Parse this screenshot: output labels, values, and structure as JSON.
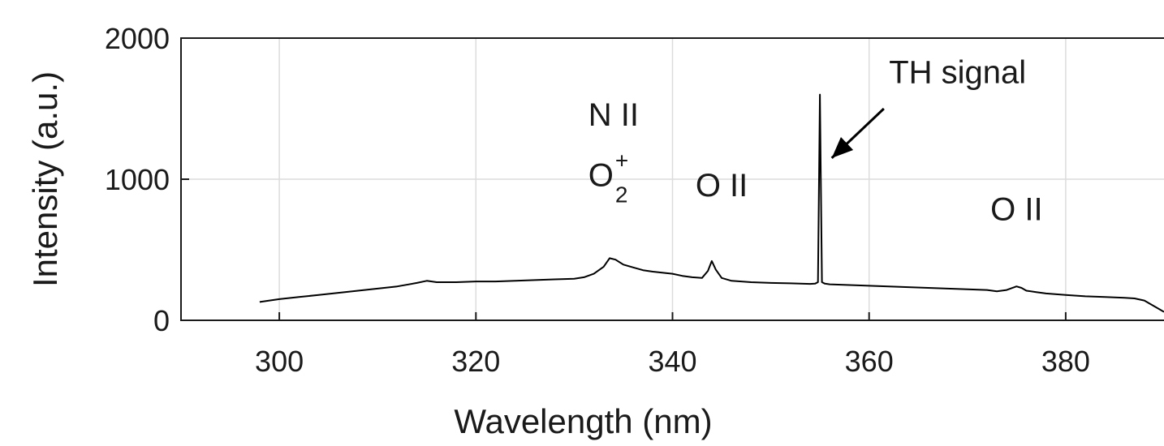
{
  "chart_data": {
    "type": "line",
    "xlabel": "Wavelength (nm)",
    "ylabel": "Intensity (a.u.)",
    "xlim": [
      290,
      390
    ],
    "ylim": [
      0,
      2000
    ],
    "x_ticks": [
      300,
      320,
      340,
      360,
      380
    ],
    "x_tick_labels": [
      "300",
      "320",
      "340",
      "360",
      "380"
    ],
    "y_ticks": [
      0,
      1000,
      2000
    ],
    "y_tick_labels": [
      "0",
      "1000",
      "2000"
    ],
    "grid": true,
    "series": [
      {
        "color": "#000000",
        "x": [
          298,
          300,
          302,
          304,
          306,
          308,
          310,
          312,
          314,
          315,
          316,
          318,
          320,
          322,
          324,
          326,
          328,
          330,
          331,
          332,
          333,
          333.6,
          334.2,
          335,
          336,
          337,
          338,
          340,
          341,
          342,
          343,
          343.6,
          344,
          344.4,
          345,
          346,
          348,
          350,
          352,
          353,
          354,
          354.5,
          354.8,
          355.0,
          355.2,
          355.5,
          356,
          358,
          360,
          362,
          364,
          366,
          368,
          370,
          372,
          373,
          374,
          375,
          375.5,
          376,
          377,
          378,
          380,
          382,
          384,
          386,
          387,
          388,
          389,
          390
        ],
        "y": [
          130,
          150,
          165,
          180,
          195,
          210,
          225,
          240,
          265,
          280,
          270,
          270,
          275,
          275,
          280,
          285,
          290,
          295,
          305,
          330,
          380,
          440,
          430,
          395,
          375,
          355,
          345,
          330,
          315,
          305,
          300,
          350,
          420,
          360,
          300,
          280,
          270,
          265,
          262,
          260,
          258,
          260,
          270,
          1600,
          270,
          260,
          255,
          250,
          245,
          240,
          235,
          230,
          225,
          220,
          215,
          205,
          215,
          240,
          230,
          210,
          200,
          190,
          180,
          170,
          165,
          160,
          155,
          140,
          100,
          60
        ]
      }
    ],
    "annotations": [
      {
        "text": "N II",
        "x": 334,
        "y": 1380
      },
      {
        "text": "O",
        "sub": "2",
        "sup": "+",
        "x": 334,
        "y": 950
      },
      {
        "text": "O II",
        "x": 345,
        "y": 880
      },
      {
        "text": "TH signal",
        "x": 369,
        "y": 1680
      },
      {
        "text": "O II",
        "x": 375,
        "y": 710
      }
    ],
    "arrow": {
      "from": [
        361.5,
        1500
      ],
      "to": [
        356.2,
        1150
      ]
    }
  }
}
